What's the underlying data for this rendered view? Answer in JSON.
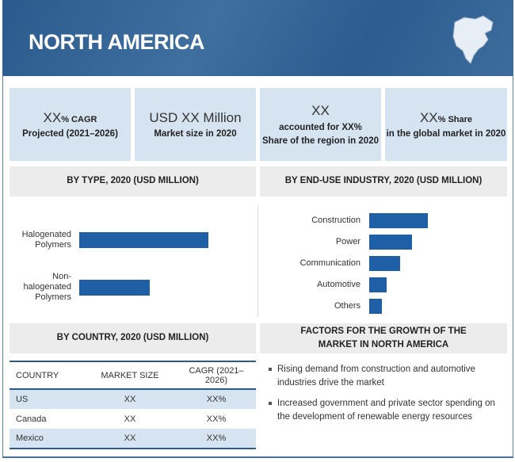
{
  "header": {
    "title": "NORTH AMERICA"
  },
  "cards": [
    {
      "big": "XX",
      "small": "% CAGR",
      "line2": "Projected (2021–2026)"
    },
    {
      "big": "USD XX Million",
      "line2": "Market size in 2020"
    },
    {
      "big": "XX",
      "line2": "accounted for XX%",
      "line3": "Share of the region in 2020"
    },
    {
      "big": "XX",
      "small": "% Share",
      "line2": "in the global market in 2020"
    }
  ],
  "sections": {
    "by_type": "BY TYPE, 2020 (USD MILLION)",
    "by_end_use": "BY END-USE INDUSTRY, 2020 (USD MILLION)",
    "by_country": "BY COUNTRY, 2020 (USD MILLION)",
    "factors": "FACTORS FOR THE GROWTH OF THE MARKET IN NORTH AMERICA"
  },
  "chart_data": [
    {
      "type": "bar",
      "orientation": "horizontal",
      "categories": [
        "Halogenated Polymers",
        "Non-halogenated Polymers"
      ],
      "values": [
        163,
        89
      ],
      "color": "#1f5fa6"
    },
    {
      "type": "bar",
      "orientation": "horizontal",
      "categories": [
        "Construction",
        "Power",
        "Communication",
        "Automotive",
        "Others"
      ],
      "values": [
        74,
        54,
        39,
        22,
        16
      ],
      "color": "#1f5fa6"
    }
  ],
  "table": {
    "headers": [
      "COUNTRY",
      "MARKET SIZE",
      "CAGR (2021–2026)"
    ],
    "rows": [
      [
        "US",
        "XX",
        "XX%"
      ],
      [
        "Canada",
        "XX",
        "XX%"
      ],
      [
        "Mexico",
        "XX",
        "XX%"
      ]
    ]
  },
  "factors": [
    "Rising demand from construction and automotive industries drive the market",
    "Increased government and private sector spending on the development of renewable energy resources"
  ]
}
